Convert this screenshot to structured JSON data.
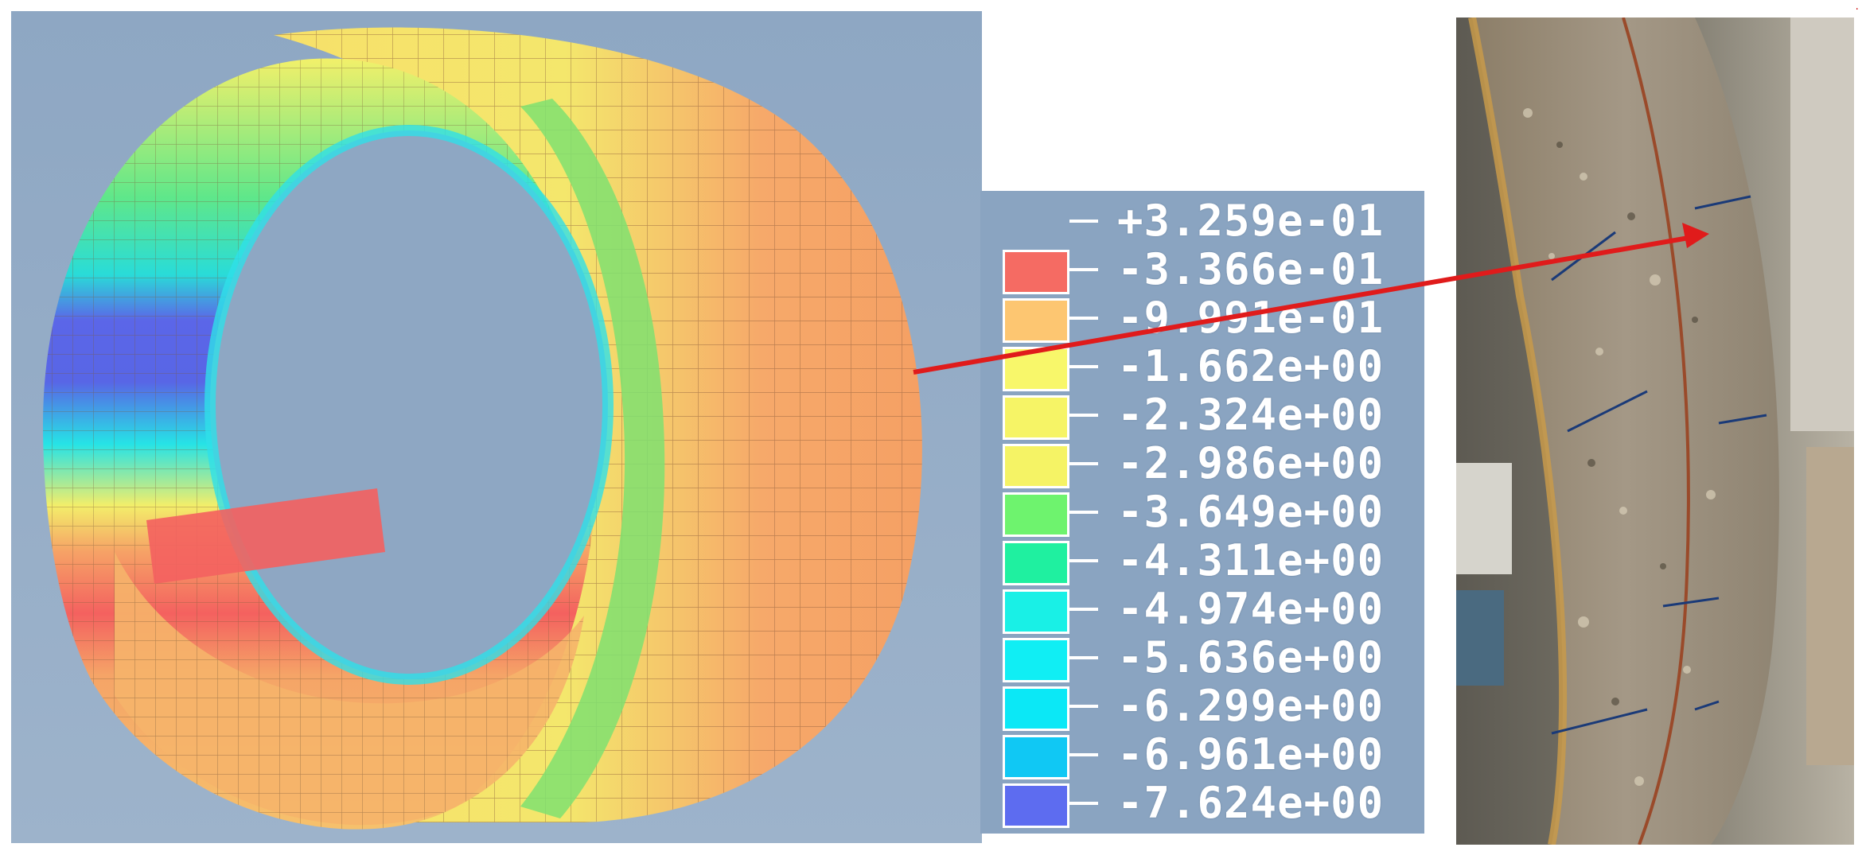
{
  "legend": {
    "labels": [
      "+3.259e-01",
      "-3.366e-01",
      "-9.991e-01",
      "-1.662e+00",
      "-2.324e+00",
      "-2.986e+00",
      "-3.649e+00",
      "-4.311e+00",
      "-4.974e+00",
      "-5.636e+00",
      "-6.299e+00",
      "-6.961e+00",
      "-7.624e+00"
    ],
    "colors": [
      "#f56b63",
      "#fdc671",
      "#f8f76a",
      "#f6f466",
      "#f5f365",
      "#6ef36e",
      "#1ff0a0",
      "#19f0e6",
      "#10eef4",
      "#0be8f6",
      "#10c8f4",
      "#5d6cf0"
    ]
  },
  "colors": {
    "background": "#8ea7c3",
    "legend_bg": "#8aa4c1",
    "arrow": "#e01b1b",
    "mesh_lines": "#7a5a3a"
  },
  "corner_mark": "."
}
